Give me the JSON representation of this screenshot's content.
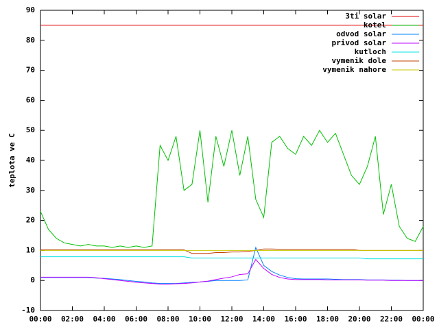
{
  "chart_data": {
    "type": "line",
    "ylabel": "teplota ve C",
    "x": [
      0,
      0.5,
      1,
      1.5,
      2,
      2.5,
      3,
      3.5,
      4,
      4.5,
      5,
      5.5,
      6,
      6.5,
      7,
      7.5,
      8,
      8.5,
      9,
      9.5,
      10,
      10.5,
      11,
      11.5,
      12,
      12.5,
      13,
      13.5,
      14,
      14.5,
      15,
      15.5,
      16,
      16.5,
      17,
      17.5,
      18,
      18.5,
      19,
      19.5,
      20,
      20.5,
      21,
      21.5,
      22,
      22.5,
      23,
      23.5,
      24
    ],
    "xlim": [
      0,
      24
    ],
    "xticks": [
      {
        "value": 0,
        "label": "00:00"
      },
      {
        "value": 2,
        "label": "02:00"
      },
      {
        "value": 4,
        "label": "04:00"
      },
      {
        "value": 6,
        "label": "06:00"
      },
      {
        "value": 8,
        "label": "08:00"
      },
      {
        "value": 10,
        "label": "10:00"
      },
      {
        "value": 12,
        "label": "12:00"
      },
      {
        "value": 14,
        "label": "14:00"
      },
      {
        "value": 16,
        "label": "16:00"
      },
      {
        "value": 18,
        "label": "18:00"
      },
      {
        "value": 20,
        "label": "20:00"
      },
      {
        "value": 22,
        "label": "22:00"
      },
      {
        "value": 24,
        "label": "00:00"
      }
    ],
    "ylim": [
      -10,
      90
    ],
    "yticks": [
      -10,
      0,
      10,
      20,
      30,
      40,
      50,
      60,
      70,
      80,
      90
    ],
    "legend": "top-right",
    "series": [
      {
        "name": "3ti solar",
        "color": "#e00000",
        "values": [
          85,
          85,
          85,
          85,
          85,
          85,
          85,
          85,
          85,
          85,
          85,
          85,
          85,
          85,
          85,
          85,
          85,
          85,
          85,
          85,
          85,
          85,
          85,
          85,
          85,
          85,
          85,
          85,
          85,
          85,
          85,
          85,
          85,
          85,
          85,
          85,
          85,
          85,
          85,
          85,
          85,
          85,
          85,
          85,
          85,
          85,
          85,
          85,
          85
        ]
      },
      {
        "name": "kotel",
        "color": "#00c000",
        "values": [
          23,
          17,
          14,
          12.5,
          12,
          11.5,
          12,
          11.5,
          11.5,
          11,
          11.5,
          11,
          11.5,
          11,
          11.5,
          45,
          40,
          48,
          30,
          32,
          50,
          26,
          48,
          38,
          50,
          35,
          48,
          27,
          21,
          46,
          48,
          44,
          42,
          48,
          45,
          50,
          46,
          49,
          42,
          35,
          32,
          38,
          48,
          22,
          32,
          18,
          14,
          13,
          18
        ]
      },
      {
        "name": "odvod solar",
        "color": "#0080ff",
        "values": [
          1,
          1,
          1,
          1,
          1,
          1,
          1,
          0.8,
          0.7,
          0.5,
          0.3,
          0,
          -0.3,
          -0.5,
          -0.8,
          -1,
          -1,
          -1,
          -0.8,
          -0.6,
          -0.5,
          -0.3,
          0,
          0,
          0,
          0,
          0.2,
          11,
          5,
          3,
          1.8,
          1,
          0.6,
          0.5,
          0.5,
          0.5,
          0.5,
          0.4,
          0.3,
          0.3,
          0.3,
          0.2,
          0.2,
          0.2,
          0.1,
          0.1,
          0,
          0,
          0
        ]
      },
      {
        "name": "privod solar",
        "color": "#c000ff",
        "values": [
          1.1,
          1.1,
          1.1,
          1.1,
          1.1,
          1.1,
          1.1,
          0.9,
          0.6,
          0.3,
          0,
          -0.3,
          -0.6,
          -0.8,
          -1,
          -1.2,
          -1.2,
          -1.1,
          -1,
          -0.8,
          -0.5,
          -0.2,
          0.3,
          0.8,
          1.2,
          2,
          2.2,
          7,
          4,
          2,
          1,
          0.5,
          0.3,
          0.3,
          0.3,
          0.3,
          0.2,
          0.2,
          0.2,
          0.2,
          0.2,
          0.1,
          0.1,
          0.1,
          0,
          0,
          0,
          0,
          0
        ]
      },
      {
        "name": "kutloch",
        "color": "#00e0e0",
        "values": [
          7.9,
          7.9,
          7.9,
          7.9,
          7.9,
          7.9,
          7.9,
          7.9,
          7.9,
          7.9,
          7.9,
          7.9,
          7.9,
          7.9,
          7.9,
          7.9,
          7.9,
          7.9,
          7.9,
          7.5,
          7.5,
          7.5,
          7.5,
          7.5,
          7.5,
          7.5,
          7.5,
          7.5,
          7.5,
          7.5,
          7.5,
          7.5,
          7.5,
          7.5,
          7.5,
          7.5,
          7.5,
          7.5,
          7.5,
          7.5,
          7.5,
          7.2,
          7.2,
          7.2,
          7.2,
          7.2,
          7.2,
          7.2,
          7.2
        ]
      },
      {
        "name": "vymenik dole",
        "color": "#c04000",
        "values": [
          10.2,
          10.2,
          10.2,
          10.2,
          10.2,
          10.2,
          10.2,
          10.2,
          10.2,
          10.2,
          10.2,
          10.2,
          10.2,
          10.2,
          10.2,
          10.2,
          10.2,
          10.2,
          10.2,
          9,
          9,
          9,
          9.3,
          9.3,
          9.5,
          9.5,
          9.7,
          10,
          10.5,
          10.5,
          10.4,
          10.4,
          10.4,
          10.4,
          10.4,
          10.4,
          10.4,
          10.4,
          10.4,
          10.4,
          10,
          10,
          10,
          10,
          10,
          10,
          10,
          10,
          10
        ]
      },
      {
        "name": "vymenik nahore",
        "color": "#c8c800",
        "values": [
          10,
          10,
          10,
          10,
          10,
          10,
          10,
          10,
          10,
          10,
          10,
          10,
          10,
          10,
          10,
          10,
          10,
          10,
          10,
          10,
          10,
          10,
          10,
          10,
          10,
          10,
          10,
          10,
          10,
          10,
          10,
          10,
          10,
          10,
          10,
          10,
          10,
          10,
          10,
          10,
          10,
          10,
          10,
          10,
          10,
          10,
          10,
          10,
          10
        ]
      }
    ]
  }
}
